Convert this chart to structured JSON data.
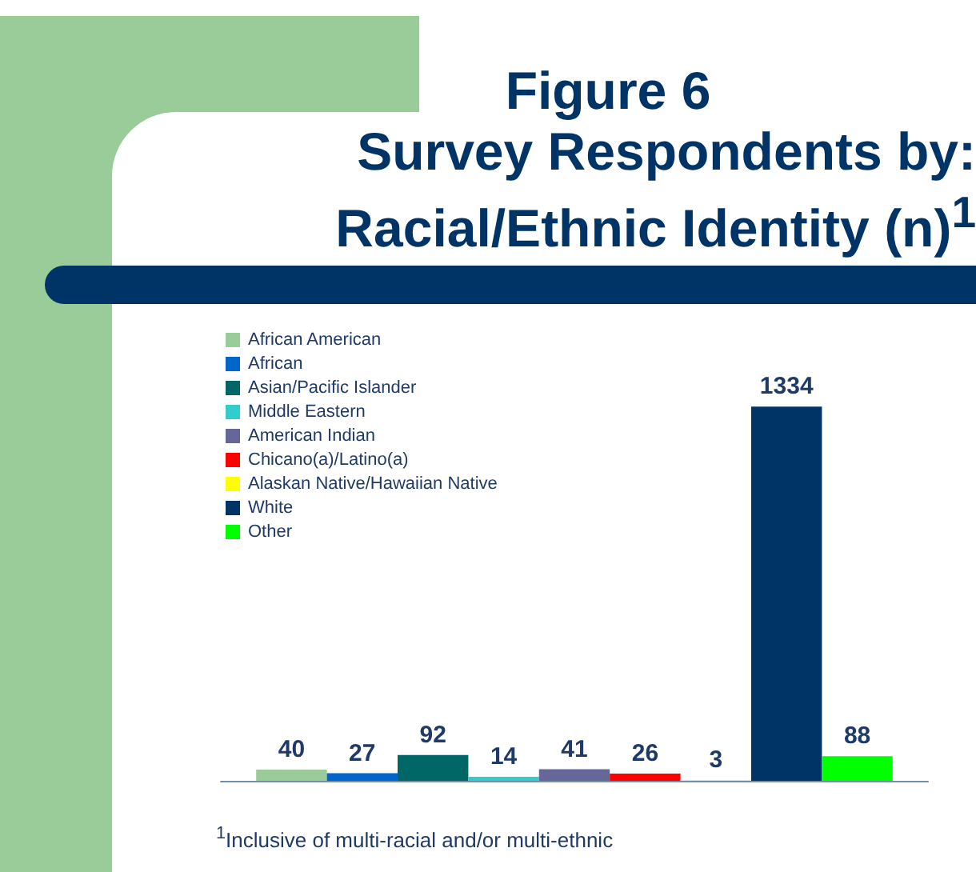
{
  "chart_data": {
    "type": "bar",
    "title": "Figure 6\nSurvey Respondents by:\nRacial/Ethnic Identity (n)$^{1}$",
    "categories": [
      null
    ],
    "data_labels": true,
    "legend": "top left",
    "grid": false,
    "series": [
      {
        "name": "African American",
        "color": "#99cc99",
        "values": [
          40
        ]
      },
      {
        "name": "African",
        "color": "#0066cc",
        "values": [
          27
        ]
      },
      {
        "name": "Asian/Pacific Islander",
        "color": "#006666",
        "values": [
          92
        ]
      },
      {
        "name": "Middle Eastern",
        "color": "#33cccc",
        "values": [
          14
        ]
      },
      {
        "name": "American Indian",
        "color": "#666699",
        "values": [
          41
        ]
      },
      {
        "name": "Chicano(a)/Latino(a)",
        "color": "#ff0000",
        "values": [
          26
        ]
      },
      {
        "name": "Alaskan Native/Hawaiian Native",
        "color": "#ffff00",
        "values": [
          3
        ]
      },
      {
        "name": "White",
        "color": "#003366",
        "values": [
          1334
        ]
      },
      {
        "name": "Other",
        "color": "#00ff00",
        "values": [
          88
        ]
      }
    ],
    "annotations": [
      "$^{1}$Inclusive of multi-racial and/or multi-ethnic"
    ]
  }
}
